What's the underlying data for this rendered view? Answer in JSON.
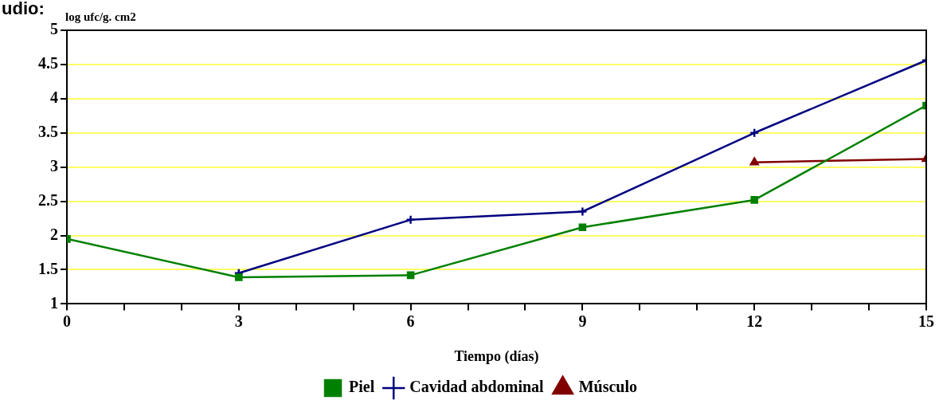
{
  "chart_data": {
    "type": "line",
    "ylabel": "log ufc/g. cm2",
    "xlabel": "Tiempo (días)",
    "annotations": [
      "udio:"
    ],
    "x": [
      0,
      3,
      6,
      9,
      12,
      15
    ],
    "series": [
      {
        "name": "Piel",
        "color": "#008000",
        "marker": "square",
        "values": [
          1.95,
          1.39,
          1.42,
          2.12,
          2.52,
          3.9
        ]
      },
      {
        "name": "Cavidad abdominal",
        "color": "#000080",
        "marker": "cross",
        "values": [
          null,
          1.45,
          2.23,
          2.35,
          3.5,
          4.56
        ]
      },
      {
        "name": "Músculo",
        "color": "#800000",
        "marker": "triangle",
        "values": [
          null,
          null,
          null,
          null,
          3.07,
          3.12
        ]
      }
    ],
    "xlim": [
      0,
      15
    ],
    "xticks": [
      0,
      {
        "value": 1,
        "label": null
      },
      {
        "value": 2,
        "label": null
      },
      3,
      {
        "value": 4,
        "label": null
      },
      {
        "value": 5,
        "label": null
      },
      6,
      {
        "value": 7,
        "label": null
      },
      {
        "value": 8,
        "label": null
      },
      9,
      {
        "value": 10,
        "label": null
      },
      {
        "value": 11,
        "label": null
      },
      12,
      {
        "value": 13,
        "label": null
      },
      {
        "value": 14,
        "label": null
      },
      15
    ],
    "ylim": [
      1,
      5
    ],
    "yticks": [
      1,
      1.5,
      2,
      2.5,
      3,
      3.5,
      4,
      4.5,
      5
    ],
    "grid": "y",
    "legend": "bottom",
    "line_style": "solid"
  }
}
